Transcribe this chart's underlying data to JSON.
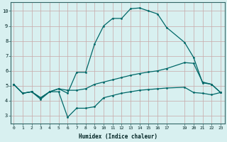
{
  "xlabel": "Humidex (Indice chaleur)",
  "bg_color": "#d8f0f0",
  "grid_color_v": "#c8a8a8",
  "grid_color_h": "#c8a8a8",
  "line_color": "#006868",
  "x_ticks": [
    0,
    1,
    2,
    3,
    4,
    5,
    6,
    7,
    8,
    9,
    10,
    11,
    12,
    13,
    14,
    15,
    16,
    17,
    19,
    20,
    21,
    22,
    23
  ],
  "ylim": [
    2.5,
    10.6
  ],
  "xlim": [
    -0.3,
    23.5
  ],
  "line1_x": [
    0,
    1,
    2,
    3,
    4,
    5,
    6,
    7,
    8,
    9,
    10,
    11,
    12,
    13,
    14,
    15,
    16,
    17,
    19,
    20,
    21,
    22,
    23
  ],
  "line1_y": [
    5.1,
    4.5,
    4.6,
    4.1,
    4.6,
    4.6,
    2.9,
    3.5,
    3.5,
    3.6,
    4.2,
    4.35,
    4.5,
    4.6,
    4.7,
    4.75,
    4.8,
    4.85,
    4.9,
    4.55,
    4.5,
    4.4,
    4.55
  ],
  "line2_x": [
    0,
    1,
    2,
    3,
    4,
    5,
    6,
    7,
    8,
    9,
    10,
    11,
    12,
    13,
    14,
    15,
    16,
    17,
    19,
    20,
    21,
    22,
    23
  ],
  "line2_y": [
    5.1,
    4.5,
    4.6,
    4.2,
    4.6,
    4.8,
    4.5,
    5.9,
    5.9,
    7.8,
    9.0,
    9.5,
    9.5,
    10.15,
    10.2,
    10.0,
    9.8,
    8.9,
    7.9,
    6.9,
    5.2,
    5.1,
    4.55
  ],
  "line3_x": [
    0,
    1,
    2,
    3,
    4,
    5,
    6,
    7,
    8,
    9,
    10,
    11,
    12,
    13,
    14,
    15,
    16,
    17,
    19,
    20,
    21,
    22,
    23
  ],
  "line3_y": [
    5.1,
    4.5,
    4.6,
    4.2,
    4.6,
    4.8,
    4.7,
    4.7,
    4.8,
    5.1,
    5.25,
    5.4,
    5.55,
    5.7,
    5.82,
    5.92,
    6.0,
    6.15,
    6.55,
    6.5,
    5.25,
    5.1,
    4.55
  ]
}
